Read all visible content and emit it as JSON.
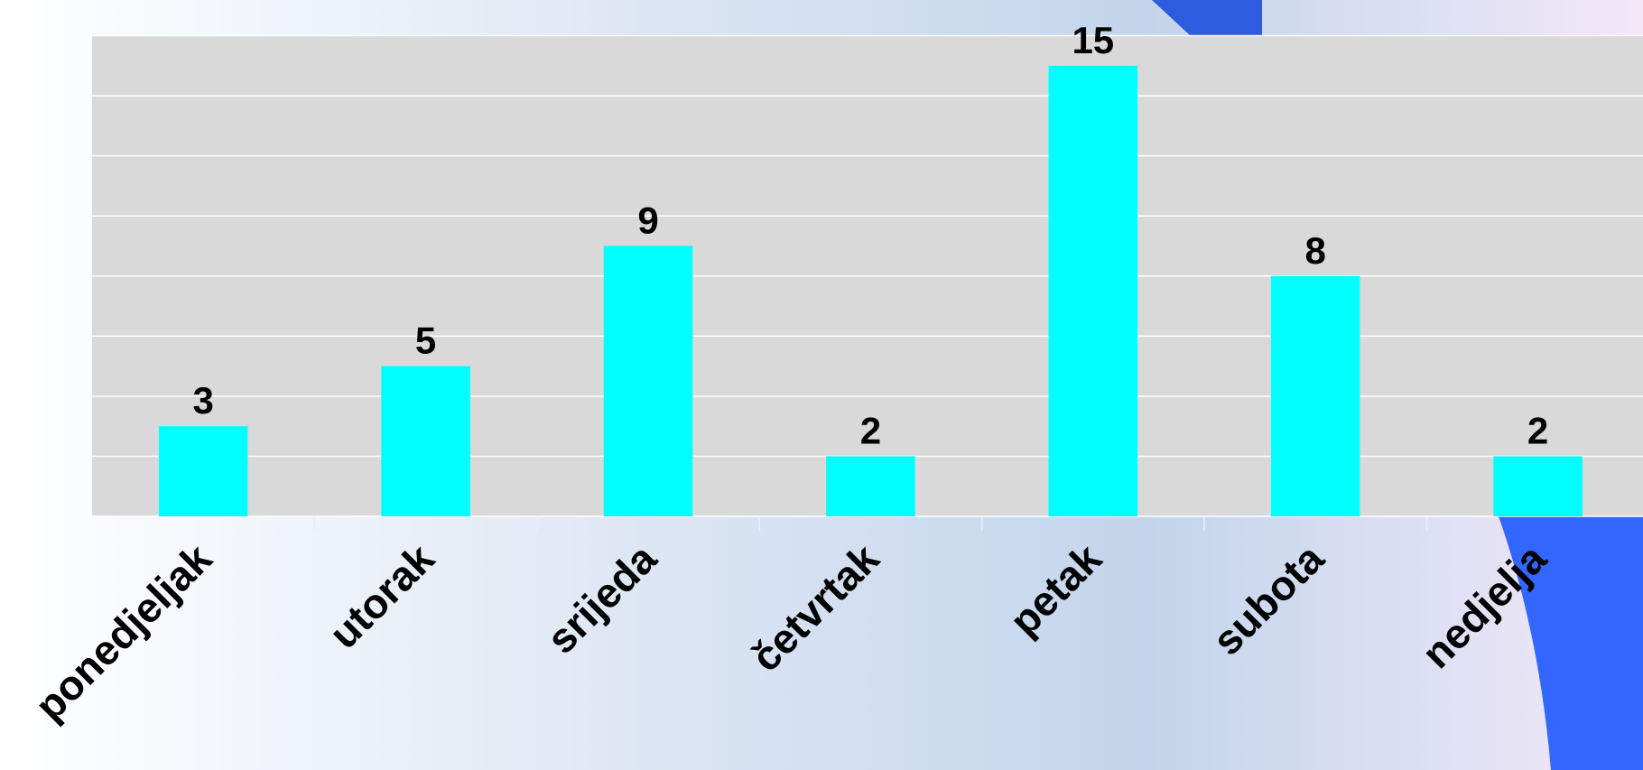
{
  "chart_data": {
    "type": "bar",
    "categories": [
      "ponedjeljak",
      "utorak",
      "srijeda",
      "četvrtak",
      "petak",
      "subota",
      "nedjelja"
    ],
    "values": [
      3,
      5,
      9,
      2,
      15,
      8,
      2
    ],
    "color": "#00ffff",
    "ylim": [
      0,
      16
    ],
    "yticks": [
      0,
      2,
      4,
      6,
      8,
      10,
      12,
      14,
      16
    ],
    "grid": true
  }
}
